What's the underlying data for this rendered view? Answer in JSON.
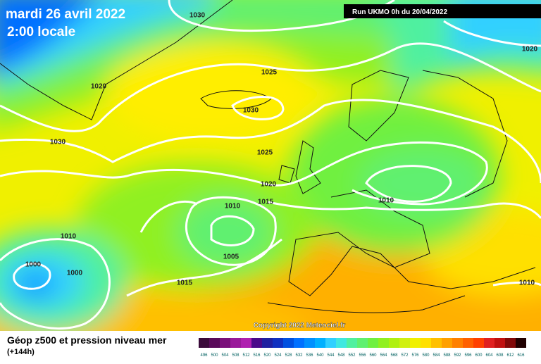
{
  "header": {
    "title": "mardi 26 avril 2022",
    "subtitle": "2:00 locale",
    "run": "Run UKMO 0h du 20/04/2022"
  },
  "isobar_labels": [
    "1030",
    "1020",
    "1020",
    "1025",
    "1030",
    "1030",
    "1025",
    "1020",
    "1015",
    "1010",
    "1010",
    "1010",
    "1000",
    "1000",
    "1005",
    "1015",
    "1010"
  ],
  "copyright": "Copyright 2022 Meteociel.fr",
  "footer": {
    "title": "Géop z500 et pression niveau mer",
    "subtitle": "(+144h)"
  },
  "scale": {
    "labels": [
      496,
      500,
      504,
      508,
      512,
      516,
      520,
      524,
      528,
      532,
      536,
      540,
      544,
      548,
      552,
      556,
      560,
      564,
      568,
      572,
      576,
      580,
      584,
      588,
      592,
      596,
      600,
      604,
      608,
      612,
      616
    ],
    "colors": [
      "#3a0a3a",
      "#5a0a5a",
      "#7a107a",
      "#9a1a9a",
      "#b020b0",
      "#4a0a8a",
      "#2020a0",
      "#1030c0",
      "#0050e0",
      "#0070ff",
      "#0090ff",
      "#00b0ff",
      "#30d0ff",
      "#40e8e0",
      "#50f0a0",
      "#60f070",
      "#70f040",
      "#90f020",
      "#b0f010",
      "#d0f010",
      "#f0f000",
      "#ffe000",
      "#ffc000",
      "#ffa000",
      "#ff8000",
      "#ff6000",
      "#ff4000",
      "#e02020",
      "#c01010",
      "#800808",
      "#200000"
    ]
  }
}
